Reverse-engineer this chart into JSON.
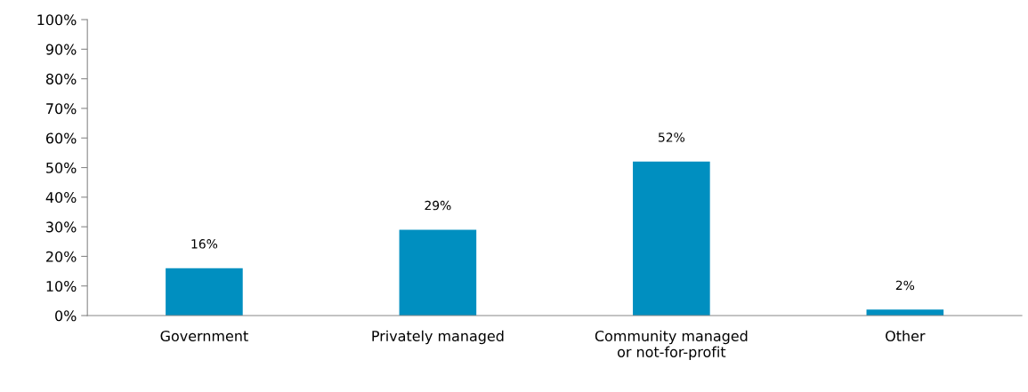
{
  "chart_data": {
    "type": "bar",
    "categories": [
      "Government",
      "Privately managed",
      "Community managed\nor not-for-profit",
      "Other"
    ],
    "values": [
      16,
      29,
      52,
      2
    ],
    "value_labels": [
      "16%",
      "29%",
      "52%",
      "2%"
    ],
    "color": "#008fc0",
    "ylim": [
      0,
      100
    ],
    "yticks": [
      {
        "value": 0,
        "label": "0%"
      },
      {
        "value": 10,
        "label": "10%"
      },
      {
        "value": 20,
        "label": "20%"
      },
      {
        "value": 30,
        "label": "30%"
      },
      {
        "value": 40,
        "label": "40%"
      },
      {
        "value": 50,
        "label": "50%"
      },
      {
        "value": 60,
        "label": "60%"
      },
      {
        "value": 70,
        "label": "70%"
      },
      {
        "value": 80,
        "label": "80%"
      },
      {
        "value": 90,
        "label": "90%"
      },
      {
        "value": 100,
        "label": "100%"
      }
    ],
    "grid": false,
    "legend": false
  }
}
